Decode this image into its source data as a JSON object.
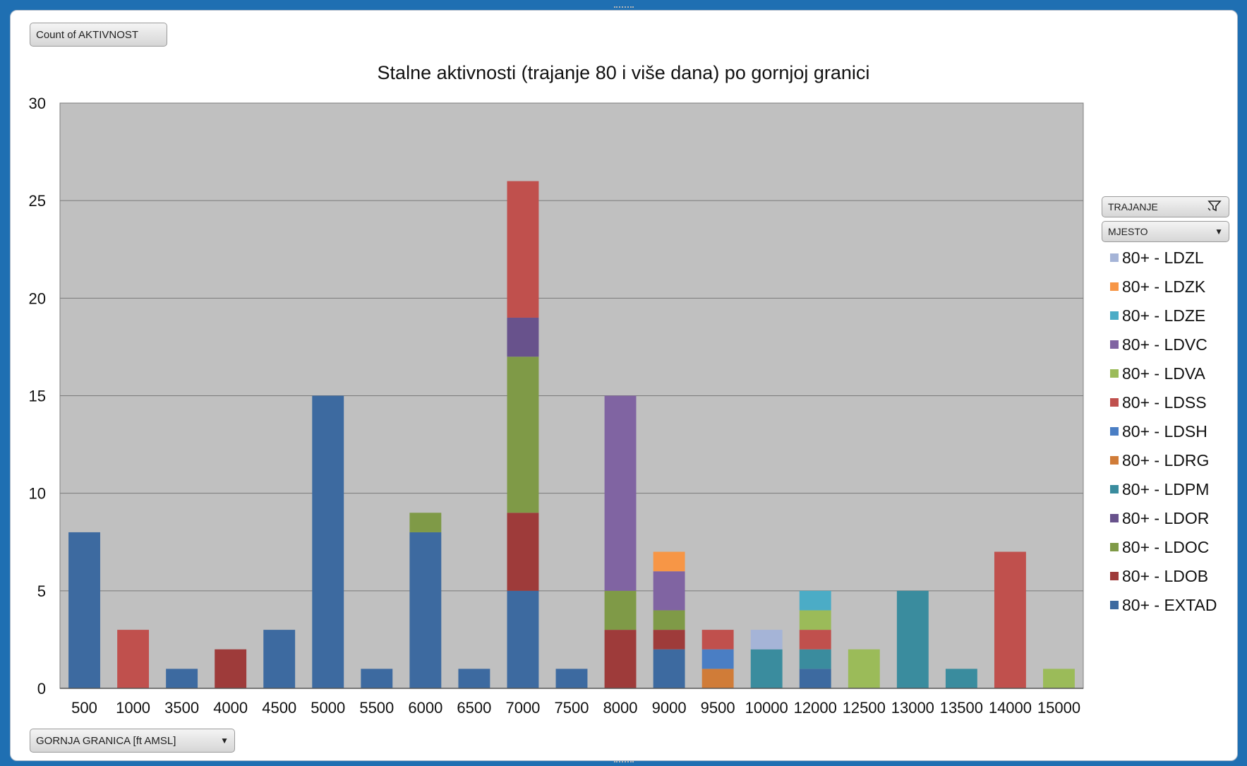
{
  "field_buttons": {
    "values_label": "Count of AKTIVNOST",
    "axis_label": "GORNJA GRANICA [ft AMSL]",
    "filter1_label": "TRAJANJE",
    "filter2_label": "MJESTO"
  },
  "icons": {
    "dropdown": "chevron-down-icon",
    "filter": "filter-icon"
  },
  "chart_data": {
    "type": "bar",
    "stacked": true,
    "title": "Stalne aktivnosti (trajanje 80 i više dana) po gornjoj granici",
    "xlabel": "",
    "ylabel": "",
    "ylim": [
      0,
      30
    ],
    "yticks": [
      0,
      5,
      10,
      15,
      20,
      25,
      30
    ],
    "grid": true,
    "plot_background": "#c0c0c0",
    "legend_position": "right",
    "categories": [
      "500",
      "1000",
      "3500",
      "4000",
      "4500",
      "5000",
      "5500",
      "6000",
      "6500",
      "7000",
      "7500",
      "8000",
      "9000",
      "9500",
      "10000",
      "12000",
      "12500",
      "13000",
      "13500",
      "14000",
      "15000"
    ],
    "series": [
      {
        "name": "80+ - EXTAD",
        "color": "#3d6aa0",
        "values": [
          8,
          0,
          1,
          0,
          3,
          15,
          1,
          8,
          1,
          5,
          1,
          0,
          2,
          0,
          0,
          1,
          0,
          0,
          0,
          0,
          0
        ]
      },
      {
        "name": "80+ - LDOB",
        "color": "#9e3b3a",
        "values": [
          0,
          0,
          0,
          2,
          0,
          0,
          0,
          0,
          0,
          4,
          0,
          3,
          1,
          0,
          0,
          0,
          0,
          0,
          0,
          0,
          0
        ]
      },
      {
        "name": "80+ - LDOC",
        "color": "#7f9a47",
        "values": [
          0,
          0,
          0,
          0,
          0,
          0,
          0,
          1,
          0,
          8,
          0,
          2,
          1,
          0,
          0,
          0,
          0,
          0,
          0,
          0,
          0
        ]
      },
      {
        "name": "80+ - LDOR",
        "color": "#68528c",
        "values": [
          0,
          0,
          0,
          0,
          0,
          0,
          0,
          0,
          0,
          2,
          0,
          0,
          0,
          0,
          0,
          0,
          0,
          0,
          0,
          0,
          0
        ]
      },
      {
        "name": "80+ - LDPM",
        "color": "#3a8c9e",
        "values": [
          0,
          0,
          0,
          0,
          0,
          0,
          0,
          0,
          0,
          0,
          0,
          0,
          0,
          0,
          2,
          1,
          0,
          5,
          1,
          0,
          0
        ]
      },
      {
        "name": "80+ - LDRG",
        "color": "#d07c38",
        "values": [
          0,
          0,
          0,
          0,
          0,
          0,
          0,
          0,
          0,
          0,
          0,
          0,
          0,
          1,
          0,
          0,
          0,
          0,
          0,
          0,
          0
        ]
      },
      {
        "name": "80+ - LDSH",
        "color": "#4a7ec4",
        "values": [
          0,
          0,
          0,
          0,
          0,
          0,
          0,
          0,
          0,
          0,
          0,
          0,
          0,
          1,
          0,
          0,
          0,
          0,
          0,
          0,
          0
        ]
      },
      {
        "name": "80+ - LDSS",
        "color": "#c0504d",
        "values": [
          0,
          3,
          0,
          0,
          0,
          0,
          0,
          0,
          0,
          7,
          0,
          0,
          0,
          1,
          0,
          1,
          0,
          0,
          0,
          7,
          0
        ]
      },
      {
        "name": "80+ - LDVA",
        "color": "#9bbb59",
        "values": [
          0,
          0,
          0,
          0,
          0,
          0,
          0,
          0,
          0,
          0,
          0,
          0,
          0,
          0,
          0,
          1,
          2,
          0,
          0,
          0,
          1
        ]
      },
      {
        "name": "80+ - LDVC",
        "color": "#8064a2",
        "values": [
          0,
          0,
          0,
          0,
          0,
          0,
          0,
          0,
          0,
          0,
          0,
          10,
          2,
          0,
          0,
          0,
          0,
          0,
          0,
          0,
          0
        ]
      },
      {
        "name": "80+ - LDZE",
        "color": "#4bacc6",
        "values": [
          0,
          0,
          0,
          0,
          0,
          0,
          0,
          0,
          0,
          0,
          0,
          0,
          0,
          0,
          0,
          1,
          0,
          0,
          0,
          0,
          0
        ]
      },
      {
        "name": "80+ - LDZK",
        "color": "#f79646",
        "values": [
          0,
          0,
          0,
          0,
          0,
          0,
          0,
          0,
          0,
          0,
          0,
          0,
          1,
          0,
          0,
          0,
          0,
          0,
          0,
          0,
          0
        ]
      },
      {
        "name": "80+ - LDZL",
        "color": "#a5b4d7",
        "values": [
          0,
          0,
          0,
          0,
          0,
          0,
          0,
          0,
          0,
          0,
          0,
          0,
          0,
          0,
          1,
          0,
          0,
          0,
          0,
          0,
          0
        ]
      }
    ]
  }
}
